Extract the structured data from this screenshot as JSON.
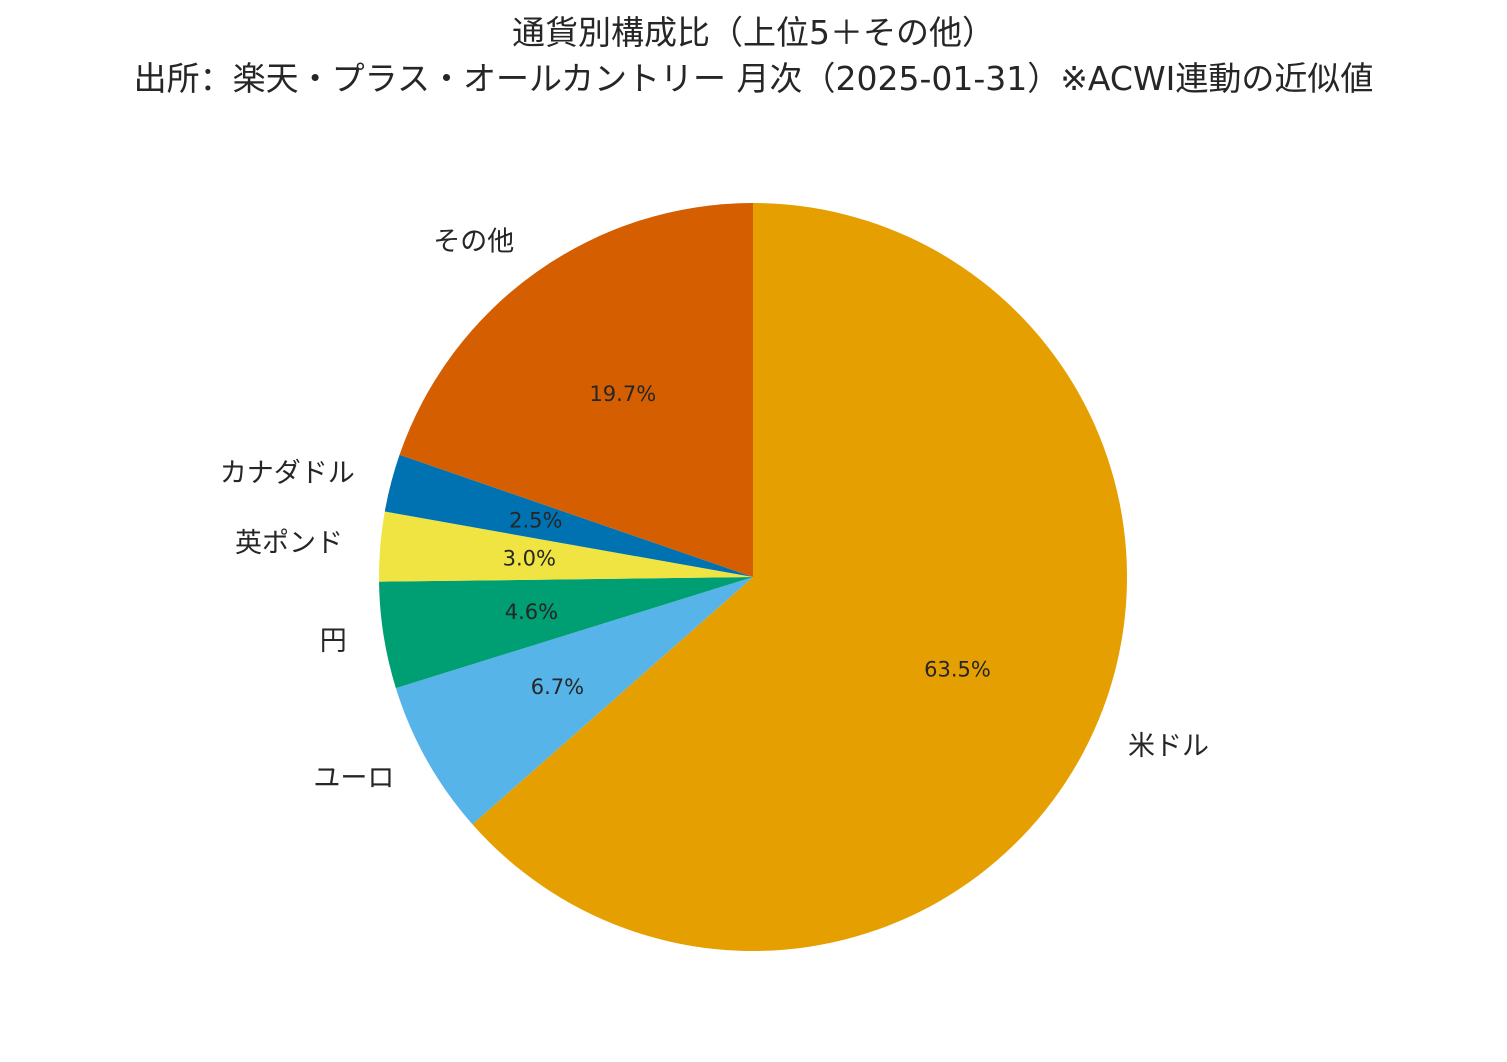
{
  "chart_data": {
    "type": "pie",
    "title": "通貨別構成比（上位5＋その他）",
    "subtitle": "出所：楽天・プラス・オールカントリー 月次（2025-01-31）※ACWI連動の近似値",
    "start_angle_deg": 90,
    "direction": "clockwise",
    "slices": [
      {
        "name": "米ドル",
        "value": 63.5,
        "pct_label": "63.5%",
        "color": "#E69F00"
      },
      {
        "name": "ユーロ",
        "value": 6.7,
        "pct_label": "6.7%",
        "color": "#56B4E9"
      },
      {
        "name": "円",
        "value": 4.6,
        "pct_label": "4.6%",
        "color": "#009E73"
      },
      {
        "name": "英ポンド",
        "value": 3.0,
        "pct_label": "3.0%",
        "color": "#F0E442"
      },
      {
        "name": "カナダドル",
        "value": 2.5,
        "pct_label": "2.5%",
        "color": "#0072B2"
      },
      {
        "name": "その他",
        "value": 19.7,
        "pct_label": "19.7%",
        "color": "#D55E00"
      }
    ]
  }
}
